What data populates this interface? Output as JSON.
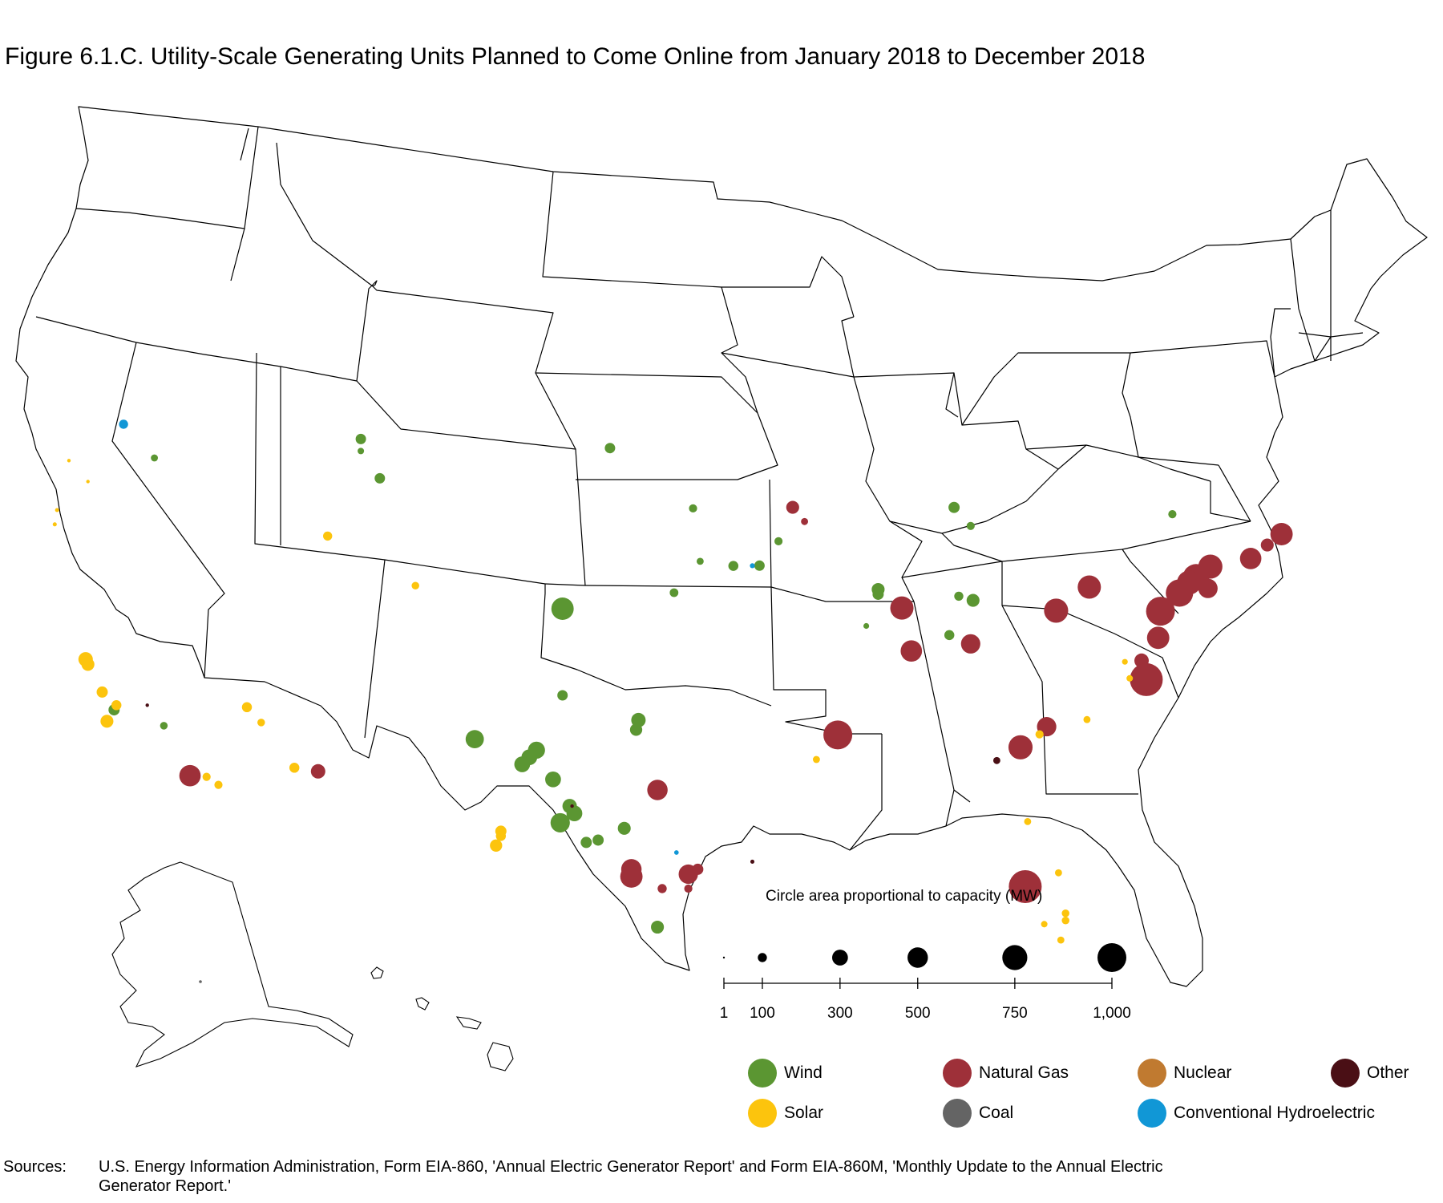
{
  "title": "Figure 6.1.C. Utility-Scale Generating Units Planned to Come Online from January 2018 to December 2018",
  "colors": {
    "Wind": "#5b9632",
    "Solar": "#fcc40d",
    "Natural Gas": "#9e3039",
    "Coal": "#646464",
    "Nuclear": "#c07a30",
    "Conventional Hydroelectric": "#1197d6",
    "Other": "#4a0f15",
    "state_outline": "#000000"
  },
  "size_legend": {
    "title": "Circle area proportional to capacity (MW)",
    "values": [
      1,
      100,
      300,
      500,
      750,
      1000
    ],
    "labels": [
      "1",
      "100",
      "300",
      "500",
      "750",
      "1,000"
    ]
  },
  "legend": {
    "wind": "Wind",
    "solar": "Solar",
    "natural_gas": "Natural Gas",
    "coal": "Coal",
    "nuclear": "Nuclear",
    "hydro": "Conventional Hydroelectric",
    "other": "Other"
  },
  "sources": {
    "label": "Sources:",
    "text": "U.S. Energy Information Administration, Form EIA-860, 'Annual Electric Generator Report' and Form EIA-860M, 'Monthly Update to the Annual Electric Generator Report.'"
  },
  "plants": [
    {
      "type": "Natural Gas",
      "lon": -71.2,
      "lat": 42.5,
      "mw": 600
    },
    {
      "type": "Natural Gas",
      "lon": -72.5,
      "lat": 41.6,
      "mw": 550
    },
    {
      "type": "Natural Gas",
      "lon": -74.2,
      "lat": 41.4,
      "mw": 700
    },
    {
      "type": "Natural Gas",
      "lon": -74.8,
      "lat": 41.0,
      "mw": 850
    },
    {
      "type": "Natural Gas",
      "lon": -75.1,
      "lat": 40.8,
      "mw": 700
    },
    {
      "type": "Natural Gas",
      "lon": -75.5,
      "lat": 40.4,
      "mw": 900
    },
    {
      "type": "Natural Gas",
      "lon": -74.3,
      "lat": 40.5,
      "mw": 450
    },
    {
      "type": "Natural Gas",
      "lon": -76.3,
      "lat": 39.7,
      "mw": 1000
    },
    {
      "type": "Natural Gas",
      "lon": -76.4,
      "lat": 38.6,
      "mw": 600
    },
    {
      "type": "Natural Gas",
      "lon": -77.1,
      "lat": 37.7,
      "mw": 250
    },
    {
      "type": "Natural Gas",
      "lon": -76.9,
      "lat": 36.9,
      "mw": 1300
    },
    {
      "type": "Natural Gas",
      "lon": -79.3,
      "lat": 40.9,
      "mw": 650
    },
    {
      "type": "Natural Gas",
      "lon": -80.7,
      "lat": 40.0,
      "mw": 700
    },
    {
      "type": "Natural Gas",
      "lon": -87.2,
      "lat": 40.4,
      "mw": 650
    },
    {
      "type": "Natural Gas",
      "lon": -86.8,
      "lat": 38.6,
      "mw": 550
    },
    {
      "type": "Natural Gas",
      "lon": -84.3,
      "lat": 38.8,
      "mw": 450
    },
    {
      "type": "Natural Gas",
      "lon": -89.9,
      "lat": 35.2,
      "mw": 1000
    },
    {
      "type": "Natural Gas",
      "lon": -81.1,
      "lat": 35.2,
      "mw": 450
    },
    {
      "type": "Natural Gas",
      "lon": -82.2,
      "lat": 34.4,
      "mw": 700
    },
    {
      "type": "Natural Gas",
      "lon": -82.0,
      "lat": 28.6,
      "mw": 1300
    },
    {
      "type": "Natural Gas",
      "lon": -97.5,
      "lat": 33.0,
      "mw": 500
    },
    {
      "type": "Natural Gas",
      "lon": -98.6,
      "lat": 29.7,
      "mw": 500
    },
    {
      "type": "Natural Gas",
      "lon": -98.6,
      "lat": 29.4,
      "mw": 600
    },
    {
      "type": "Natural Gas",
      "lon": -96.2,
      "lat": 29.5,
      "mw": 450
    },
    {
      "type": "Natural Gas",
      "lon": -95.8,
      "lat": 29.7,
      "mw": 150
    },
    {
      "type": "Natural Gas",
      "lon": -97.3,
      "lat": 28.9,
      "mw": 100
    },
    {
      "type": "Natural Gas",
      "lon": -96.2,
      "lat": 28.9,
      "mw": 80
    },
    {
      "type": "Natural Gas",
      "lon": -117.2,
      "lat": 32.9,
      "mw": 550
    },
    {
      "type": "Natural Gas",
      "lon": -111.8,
      "lat": 33.4,
      "mw": 250
    },
    {
      "type": "Natural Gas",
      "lon": -91.8,
      "lat": 44.7,
      "mw": 200
    },
    {
      "type": "Natural Gas",
      "lon": -91.3,
      "lat": 44.1,
      "mw": 60
    },
    {
      "type": "Natural Gas",
      "lon": -71.8,
      "lat": 42.1,
      "mw": 200
    },
    {
      "type": "Wind",
      "lon": -101.5,
      "lat": 40.5,
      "mw": 600
    },
    {
      "type": "Wind",
      "lon": -101.5,
      "lat": 36.9,
      "mw": 130
    },
    {
      "type": "Wind",
      "lon": -98.4,
      "lat": 35.5,
      "mw": 180
    },
    {
      "type": "Wind",
      "lon": -98.3,
      "lat": 35.9,
      "mw": 250
    },
    {
      "type": "Wind",
      "lon": -105.2,
      "lat": 35.0,
      "mw": 400
    },
    {
      "type": "Wind",
      "lon": -102.6,
      "lat": 34.6,
      "mw": 350
    },
    {
      "type": "Wind",
      "lon": -102.9,
      "lat": 34.3,
      "mw": 300
    },
    {
      "type": "Wind",
      "lon": -103.2,
      "lat": 34.0,
      "mw": 300
    },
    {
      "type": "Wind",
      "lon": -101.9,
      "lat": 33.4,
      "mw": 300
    },
    {
      "type": "Wind",
      "lon": -101.2,
      "lat": 32.3,
      "mw": 250
    },
    {
      "type": "Wind",
      "lon": -101.0,
      "lat": 32.0,
      "mw": 300
    },
    {
      "type": "Wind",
      "lon": -101.6,
      "lat": 31.6,
      "mw": 450
    },
    {
      "type": "Wind",
      "lon": -100.5,
      "lat": 30.8,
      "mw": 150
    },
    {
      "type": "Wind",
      "lon": -100.0,
      "lat": 30.9,
      "mw": 150
    },
    {
      "type": "Wind",
      "lon": -98.9,
      "lat": 31.4,
      "mw": 200
    },
    {
      "type": "Wind",
      "lon": -97.5,
      "lat": 27.3,
      "mw": 200
    },
    {
      "type": "Wind",
      "lon": -88.2,
      "lat": 41.2,
      "mw": 200
    },
    {
      "type": "Wind",
      "lon": -88.2,
      "lat": 41.0,
      "mw": 150
    },
    {
      "type": "Wind",
      "lon": -94.3,
      "lat": 42.3,
      "mw": 120
    },
    {
      "type": "Wind",
      "lon": -93.2,
      "lat": 42.3,
      "mw": 130
    },
    {
      "type": "Wind",
      "lon": -85.0,
      "lat": 44.5,
      "mw": 150
    },
    {
      "type": "Wind",
      "lon": -84.3,
      "lat": 43.7,
      "mw": 80
    },
    {
      "type": "Wind",
      "lon": -84.2,
      "lat": 40.6,
      "mw": 200
    },
    {
      "type": "Wind",
      "lon": -84.8,
      "lat": 40.8,
      "mw": 100
    },
    {
      "type": "Wind",
      "lon": -85.2,
      "lat": 39.2,
      "mw": 120
    },
    {
      "type": "Wind",
      "lon": -99.5,
      "lat": 47.2,
      "mw": 130
    },
    {
      "type": "Wind",
      "lon": -110.0,
      "lat": 47.3,
      "mw": 130
    },
    {
      "type": "Wind",
      "lon": -110.0,
      "lat": 46.8,
      "mw": 50
    },
    {
      "type": "Wind",
      "lon": -109.2,
      "lat": 45.7,
      "mw": 130
    },
    {
      "type": "Wind",
      "lon": -118.7,
      "lat": 46.0,
      "mw": 60
    },
    {
      "type": "Wind",
      "lon": -92.4,
      "lat": 43.3,
      "mw": 80
    },
    {
      "type": "Wind",
      "lon": -96.0,
      "lat": 44.7,
      "mw": 80
    },
    {
      "type": "Wind",
      "lon": -95.7,
      "lat": 42.5,
      "mw": 60
    },
    {
      "type": "Wind",
      "lon": -96.8,
      "lat": 41.2,
      "mw": 90
    },
    {
      "type": "Wind",
      "lon": -75.8,
      "lat": 43.7,
      "mw": 80
    },
    {
      "type": "Wind",
      "lon": -120.4,
      "lat": 35.4,
      "mw": 150
    },
    {
      "type": "Wind",
      "lon": -118.3,
      "lat": 34.9,
      "mw": 70
    },
    {
      "type": "Wind",
      "lon": -88.7,
      "lat": 39.7,
      "mw": 40
    },
    {
      "type": "Solar",
      "lon": -121.6,
      "lat": 37.4,
      "mw": 250
    },
    {
      "type": "Solar",
      "lon": -121.5,
      "lat": 37.2,
      "mw": 200
    },
    {
      "type": "Solar",
      "lon": -120.9,
      "lat": 36.1,
      "mw": 150
    },
    {
      "type": "Solar",
      "lon": -120.3,
      "lat": 35.6,
      "mw": 120
    },
    {
      "type": "Solar",
      "lon": -120.7,
      "lat": 34.9,
      "mw": 200
    },
    {
      "type": "Solar",
      "lon": -116.5,
      "lat": 32.9,
      "mw": 80
    },
    {
      "type": "Solar",
      "lon": -116.0,
      "lat": 32.6,
      "mw": 80
    },
    {
      "type": "Solar",
      "lon": -114.8,
      "lat": 35.9,
      "mw": 120
    },
    {
      "type": "Solar",
      "lon": -114.2,
      "lat": 35.3,
      "mw": 70
    },
    {
      "type": "Solar",
      "lon": -112.8,
      "lat": 33.5,
      "mw": 120
    },
    {
      "type": "Solar",
      "lon": -111.4,
      "lat": 43.2,
      "mw": 100
    },
    {
      "type": "Solar",
      "lon": -107.7,
      "lat": 41.3,
      "mw": 70
    },
    {
      "type": "Solar",
      "lon": -104.1,
      "lat": 31.2,
      "mw": 150
    },
    {
      "type": "Solar",
      "lon": -104.1,
      "lat": 31.0,
      "mw": 120
    },
    {
      "type": "Solar",
      "lon": -104.3,
      "lat": 30.6,
      "mw": 180
    },
    {
      "type": "Solar",
      "lon": -81.4,
      "lat": 34.9,
      "mw": 80
    },
    {
      "type": "Solar",
      "lon": -79.4,
      "lat": 35.4,
      "mw": 60
    },
    {
      "type": "Solar",
      "lon": -77.8,
      "lat": 37.7,
      "mw": 40
    },
    {
      "type": "Solar",
      "lon": -77.6,
      "lat": 37.0,
      "mw": 50
    },
    {
      "type": "Solar",
      "lon": -81.9,
      "lat": 31.3,
      "mw": 60
    },
    {
      "type": "Solar",
      "lon": -80.6,
      "lat": 29.1,
      "mw": 60
    },
    {
      "type": "Solar",
      "lon": -80.3,
      "lat": 27.4,
      "mw": 70
    },
    {
      "type": "Solar",
      "lon": -80.3,
      "lat": 27.1,
      "mw": 70
    },
    {
      "type": "Solar",
      "lon": -80.5,
      "lat": 26.3,
      "mw": 60
    },
    {
      "type": "Solar",
      "lon": -81.2,
      "lat": 27.0,
      "mw": 50
    },
    {
      "type": "Solar",
      "lon": -90.8,
      "lat": 34.2,
      "mw": 60
    },
    {
      "type": "Solar",
      "lon": -122.8,
      "lat": 43.5,
      "mw": 20
    },
    {
      "type": "Solar",
      "lon": -122.9,
      "lat": 42.9,
      "mw": 20
    },
    {
      "type": "Solar",
      "lon": -122.3,
      "lat": 45.6,
      "mw": 15
    },
    {
      "type": "Solar",
      "lon": -121.5,
      "lat": 44.8,
      "mw": 15
    },
    {
      "type": "Conventional Hydroelectric",
      "lon": -120.0,
      "lat": 47.3,
      "mw": 100
    },
    {
      "type": "Conventional Hydroelectric",
      "lon": -93.5,
      "lat": 42.3,
      "mw": 30
    },
    {
      "type": "Conventional Hydroelectric",
      "lon": -96.7,
      "lat": 30.4,
      "mw": 25
    },
    {
      "type": "Other",
      "lon": -83.2,
      "lat": 33.9,
      "mw": 60
    },
    {
      "type": "Other",
      "lon": -101.1,
      "lat": 32.3,
      "mw": 15
    },
    {
      "type": "Other",
      "lon": -93.5,
      "lat": 30.0,
      "mw": 20
    },
    {
      "type": "Other",
      "lon": -119.0,
      "lat": 35.7,
      "mw": 15
    },
    {
      "type": "Coal",
      "lon": -160.0,
      "lat": 63.0,
      "mw": 10
    }
  ]
}
